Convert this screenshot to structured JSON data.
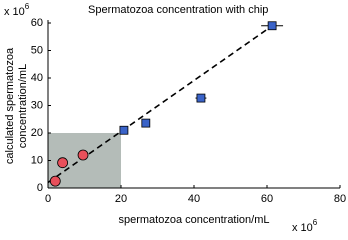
{
  "chart_data": {
    "type": "scatter",
    "title": "Spermatozoa concentration with chip",
    "x_label": "spermatozoa concentration/mL",
    "y_label": [
      "calculated spermatozoa",
      "concentration/mL"
    ],
    "x_multiplier": {
      "base": "x 10",
      "exponent": "6"
    },
    "y_multiplier": {
      "base": "x 10",
      "exponent": "6"
    },
    "xlim": [
      0,
      80
    ],
    "xticks": [
      0,
      20,
      40,
      60,
      80
    ],
    "ylim": [
      0,
      60
    ],
    "yticks": [
      0,
      10,
      20,
      30,
      40,
      50,
      60
    ],
    "shaded_region": {
      "x": [
        0,
        20
      ],
      "y": [
        0,
        20
      ],
      "color": "#b4bcb8"
    },
    "fit_line": {
      "x": [
        0,
        62
      ],
      "values": [
        2,
        59.5
      ],
      "color": "#000000"
    },
    "series": [
      {
        "marker": "circle",
        "color": "#e8505b",
        "x": [
          2,
          4,
          9.6
        ],
        "values": [
          2.5,
          9.2,
          12
        ]
      },
      {
        "marker": "square",
        "color": "#3a63c8",
        "x": [
          20.8,
          26.8,
          41.9,
          61.4
        ],
        "values": [
          21,
          23.6,
          32.7,
          59
        ],
        "xerr": [
          1,
          0.8,
          1.5,
          3
        ]
      }
    ]
  }
}
